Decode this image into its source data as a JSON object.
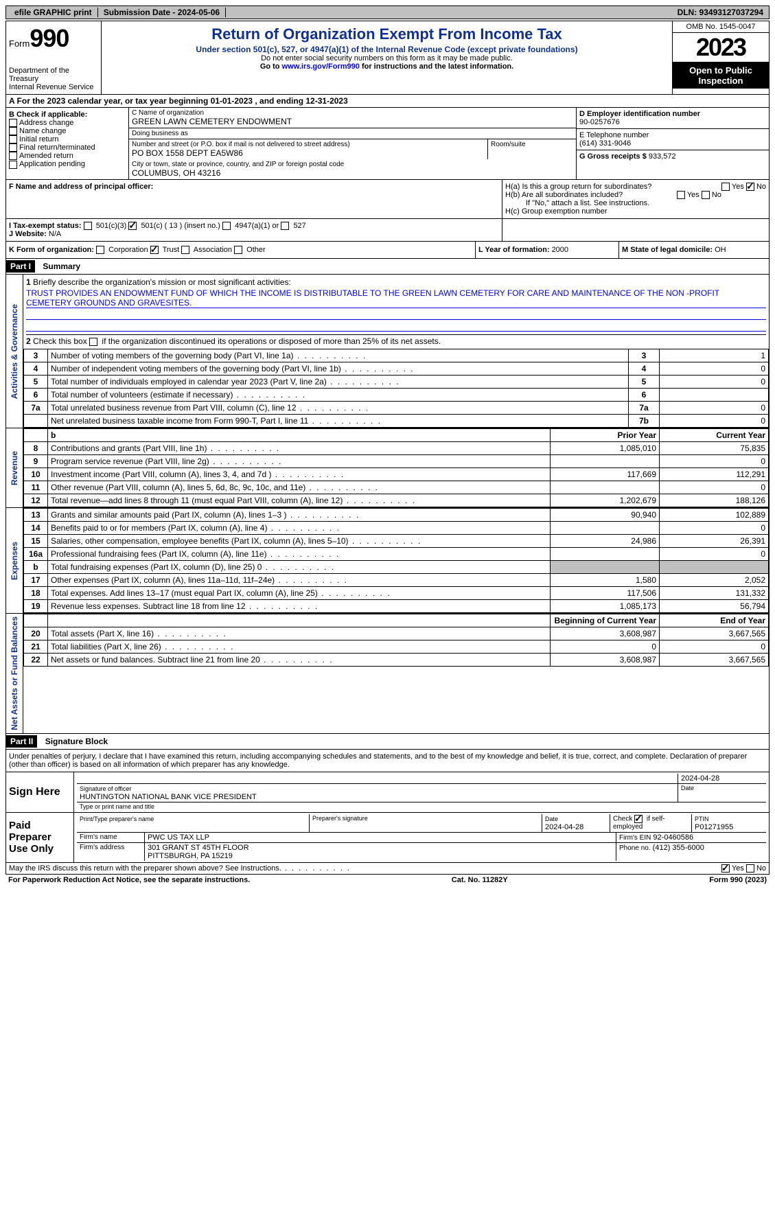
{
  "topbar": {
    "efile": "efile GRAPHIC print",
    "submission": "Submission Date - 2024-05-06",
    "dln": "DLN: 93493127037294"
  },
  "header": {
    "form_label": "Form",
    "form_num": "990",
    "dept": "Department of the Treasury\nInternal Revenue Service",
    "title": "Return of Organization Exempt From Income Tax",
    "sub": "Under section 501(c), 527, or 4947(a)(1) of the Internal Revenue Code (except private foundations)",
    "note1": "Do not enter social security numbers on this form as it may be made public.",
    "note2_pre": "Go to ",
    "note2_link": "www.irs.gov/Form990",
    "note2_post": " for instructions and the latest information.",
    "omb": "OMB No. 1545-0047",
    "year": "2023",
    "open": "Open to Public Inspection"
  },
  "rowA": "A For the 2023 calendar year, or tax year beginning 01-01-2023   , and ending 12-31-2023",
  "colB": {
    "label": "B Check if applicable:",
    "items": [
      "Address change",
      "Name change",
      "Initial return",
      "Final return/terminated",
      "Amended return",
      "Application pending"
    ]
  },
  "colC": {
    "name_lbl": "C Name of organization",
    "name": "GREEN LAWN CEMETERY ENDOWMENT",
    "dba_lbl": "Doing business as",
    "dba": "",
    "addr_lbl": "Number and street (or P.O. box if mail is not delivered to street address)",
    "addr": "PO BOX 1558 DEPT EA5W86",
    "room_lbl": "Room/suite",
    "room": "",
    "city_lbl": "City or town, state or province, country, and ZIP or foreign postal code",
    "city": "COLUMBUS, OH  43216"
  },
  "colD": {
    "ein_lbl": "D Employer identification number",
    "ein": "90-0257676",
    "phone_lbl": "E Telephone number",
    "phone": "(614) 331-9046",
    "gross_lbl": "G Gross receipts $ ",
    "gross": "933,572"
  },
  "rowF": {
    "f_lbl": "F  Name and address of principal officer:",
    "f_val": "",
    "ha": "H(a)  Is this a group return for subordinates?",
    "hb": "H(b)  Are all subordinates included?",
    "hb_note": "If \"No,\" attach a list. See instructions.",
    "hc": "H(c)  Group exemption number"
  },
  "rowI": {
    "i_lbl": "I    Tax-exempt status:",
    "opts": [
      "501(c)(3)",
      "501(c) ( 13 ) (insert no.)",
      "4947(a)(1) or",
      "527"
    ],
    "j_lbl": "J   Website:",
    "j_val": "N/A"
  },
  "rowK": {
    "k_lbl": "K Form of organization:",
    "opts": [
      "Corporation",
      "Trust",
      "Association",
      "Other"
    ],
    "l_lbl": "L Year of formation: ",
    "l_val": "2000",
    "m_lbl": "M State of legal domicile: ",
    "m_val": "OH"
  },
  "part1": {
    "hdr": "Part I",
    "title": "Summary",
    "side_ag": "Activities & Governance",
    "side_rev": "Revenue",
    "side_exp": "Expenses",
    "side_net": "Net Assets or Fund Balances",
    "l1_lbl": "Briefly describe the organization's mission or most significant activities:",
    "l1_val": "TRUST PROVIDES AN ENDOWMENT FUND OF WHICH THE INCOME IS DISTRIBUTABLE TO THE GREEN LAWN CEMETERY FOR CARE AND MAINTENANCE OF THE NON -PROFIT CEMETERY GROUNDS AND GRAVESITES.",
    "l2": "Check this box      if the organization discontinued its operations or disposed of more than 25% of its net assets.",
    "rows_ag": [
      {
        "n": "3",
        "d": "Number of voting members of the governing body (Part VI, line 1a)",
        "b": "3",
        "v": "1"
      },
      {
        "n": "4",
        "d": "Number of independent voting members of the governing body (Part VI, line 1b)",
        "b": "4",
        "v": "0"
      },
      {
        "n": "5",
        "d": "Total number of individuals employed in calendar year 2023 (Part V, line 2a)",
        "b": "5",
        "v": "0"
      },
      {
        "n": "6",
        "d": "Total number of volunteers (estimate if necessary)",
        "b": "6",
        "v": ""
      },
      {
        "n": "7a",
        "d": "Total unrelated business revenue from Part VIII, column (C), line 12",
        "b": "7a",
        "v": "0"
      },
      {
        "n": "",
        "d": "Net unrelated business taxable income from Form 990-T, Part I, line 11",
        "b": "7b",
        "v": "0"
      }
    ],
    "col_hdr": {
      "prior": "Prior Year",
      "current": "Current Year"
    },
    "rows_rev": [
      {
        "n": "8",
        "d": "Contributions and grants (Part VIII, line 1h)",
        "p": "1,085,010",
        "c": "75,835"
      },
      {
        "n": "9",
        "d": "Program service revenue (Part VIII, line 2g)",
        "p": "",
        "c": "0"
      },
      {
        "n": "10",
        "d": "Investment income (Part VIII, column (A), lines 3, 4, and 7d )",
        "p": "117,669",
        "c": "112,291"
      },
      {
        "n": "11",
        "d": "Other revenue (Part VIII, column (A), lines 5, 6d, 8c, 9c, 10c, and 11e)",
        "p": "",
        "c": "0"
      },
      {
        "n": "12",
        "d": "Total revenue—add lines 8 through 11 (must equal Part VIII, column (A), line 12)",
        "p": "1,202,679",
        "c": "188,126"
      }
    ],
    "rows_exp": [
      {
        "n": "13",
        "d": "Grants and similar amounts paid (Part IX, column (A), lines 1–3 )",
        "p": "90,940",
        "c": "102,889"
      },
      {
        "n": "14",
        "d": "Benefits paid to or for members (Part IX, column (A), line 4)",
        "p": "",
        "c": "0"
      },
      {
        "n": "15",
        "d": "Salaries, other compensation, employee benefits (Part IX, column (A), lines 5–10)",
        "p": "24,986",
        "c": "26,391"
      },
      {
        "n": "16a",
        "d": "Professional fundraising fees (Part IX, column (A), line 11e)",
        "p": "",
        "c": "0"
      },
      {
        "n": "b",
        "d": "Total fundraising expenses (Part IX, column (D), line 25) 0",
        "p": "",
        "c": "",
        "shade": true
      },
      {
        "n": "17",
        "d": "Other expenses (Part IX, column (A), lines 11a–11d, 11f–24e)",
        "p": "1,580",
        "c": "2,052"
      },
      {
        "n": "18",
        "d": "Total expenses. Add lines 13–17 (must equal Part IX, column (A), line 25)",
        "p": "117,506",
        "c": "131,332"
      },
      {
        "n": "19",
        "d": "Revenue less expenses. Subtract line 18 from line 12",
        "p": "1,085,173",
        "c": "56,794"
      }
    ],
    "col_hdr2": {
      "prior": "Beginning of Current Year",
      "current": "End of Year"
    },
    "rows_net": [
      {
        "n": "20",
        "d": "Total assets (Part X, line 16)",
        "p": "3,608,987",
        "c": "3,667,565"
      },
      {
        "n": "21",
        "d": "Total liabilities (Part X, line 26)",
        "p": "0",
        "c": "0"
      },
      {
        "n": "22",
        "d": "Net assets or fund balances. Subtract line 21 from line 20",
        "p": "3,608,987",
        "c": "3,667,565"
      }
    ]
  },
  "part2": {
    "hdr": "Part II",
    "title": "Signature Block",
    "decl": "Under penalties of perjury, I declare that I have examined this return, including accompanying schedules and statements, and to the best of my knowledge and belief, it is true, correct, and complete. Declaration of preparer (other than officer) is based on all information of which preparer has any knowledge.",
    "sign_here": "Sign Here",
    "sig_officer_lbl": "Signature of officer",
    "sig_date": "2024-04-28",
    "sig_name": "HUNTINGTON NATIONAL BANK  VICE PRESIDENT",
    "sig_name_lbl": "Type or print name and title",
    "paid_lbl": "Paid Preparer Use Only",
    "prep_name_lbl": "Print/Type preparer's name",
    "prep_name": "",
    "prep_sig_lbl": "Preparer's signature",
    "prep_date_lbl": "Date",
    "prep_date": "2024-04-28",
    "check_lbl": "Check       if self-employed",
    "ptin_lbl": "PTIN",
    "ptin": "P01271955",
    "firm_name_lbl": "Firm's name",
    "firm_name": "PWC US TAX LLP",
    "firm_ein_lbl": "Firm's EIN",
    "firm_ein": "92-0460586",
    "firm_addr_lbl": "Firm's address",
    "firm_addr": "301 GRANT ST 45TH FLOOR\nPITTSBURGH, PA  15219",
    "firm_phone_lbl": "Phone no.",
    "firm_phone": "(412) 355-6000",
    "discuss": "May the IRS discuss this return with the preparer shown above? See Instructions."
  },
  "footer": {
    "pra": "For Paperwork Reduction Act Notice, see the separate instructions.",
    "cat": "Cat. No. 11282Y",
    "form": "Form 990 (2023)"
  },
  "labels": {
    "yes": "Yes",
    "no": "No",
    "date": "Date"
  }
}
